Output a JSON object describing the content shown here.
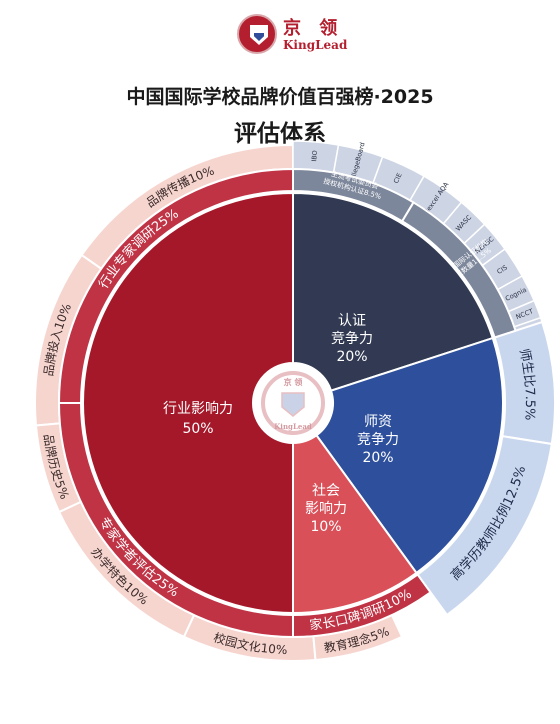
{
  "header": {
    "logo_cn": "京 领",
    "logo_en": "KingLead",
    "title": "中国国际学校品牌价值百强榜·2025",
    "subtitle": "评估体系"
  },
  "center_logo": {
    "cn": "京 领",
    "en": "KingLead"
  },
  "colors": {
    "dark_red": "#a5182a",
    "red": "#bf3345",
    "pink": "#f6d5cf",
    "navy": "#313a52",
    "blue": "#2d4f9c",
    "coral": "#d95059",
    "slate": "#7d879b",
    "light_slate": "#cdd4e4",
    "light_blue": "#c9d7ee"
  },
  "chart_data": {
    "type": "sunburst",
    "inner_ring": [
      {
        "name": "行业影响力",
        "value": 50,
        "label": "50%",
        "color": "#a5182a"
      },
      {
        "name": "认证竞争力",
        "value": 20,
        "label": "20%",
        "color": "#313a52"
      },
      {
        "name": "师资竞争力",
        "value": 20,
        "label": "20%",
        "color": "#2d4f9c"
      },
      {
        "name": "社会影响力",
        "value": 10,
        "label": "10%",
        "color": "#d95059"
      }
    ],
    "inner_labels": [
      {
        "lines": [
          "行业影响力",
          "50%"
        ]
      },
      {
        "lines": [
          "认证",
          "竞争力",
          "20%"
        ]
      },
      {
        "lines": [
          "师资",
          "竞争力",
          "20%"
        ]
      },
      {
        "lines": [
          "社会",
          "影响力",
          "10%"
        ]
      }
    ],
    "middle_ring": [
      {
        "label": "行业专家调研25%",
        "value": 25,
        "parent": "行业影响力",
        "color": "#bf3345"
      },
      {
        "label": "专家学者评估25%",
        "value": 25,
        "parent": "行业影响力",
        "color": "#bf3345"
      },
      {
        "label": "家长口碑调研10%",
        "value": 10,
        "parent": "社会影响力",
        "color": "#bf3345"
      },
      {
        "label": "师生比7.5%",
        "value": 7.5,
        "parent": "师资竞争力",
        "color": "#c9d7ee"
      },
      {
        "label": "高学历教师比例12.5%",
        "value": 12.5,
        "parent": "师资竞争力",
        "color": "#c9d7ee"
      },
      {
        "label": "主流考试委员会授权机构认证8.5%",
        "value": 8.5,
        "parent": "认证竞争力",
        "color": "#7d879b"
      },
      {
        "label": "主流国际认证机构认证数量11.5%",
        "value": 11.5,
        "parent": "认证竞争力",
        "color": "#7d879b"
      }
    ],
    "outer_ring": [
      {
        "label": "品牌传播10%",
        "value": 10,
        "color": "#f6d5cf"
      },
      {
        "label": "品牌投入10%",
        "value": 10,
        "color": "#f6d5cf"
      },
      {
        "label": "品牌历史5%",
        "value": 5,
        "color": "#f6d5cf"
      },
      {
        "label": "办学特色10%",
        "value": 10,
        "color": "#f6d5cf"
      },
      {
        "label": "校园文化10%",
        "value": 10,
        "color": "#f6d5cf"
      },
      {
        "label": "教育理念5%",
        "value": 5,
        "color": "#f6d5cf"
      }
    ],
    "exam_boards": [
      "IBO",
      "CollegeBoard",
      "CIE",
      "Edexcel AQA"
    ],
    "accreditors": [
      "WASC",
      "NEASC",
      "CIS",
      "Cognia",
      "NCCT",
      "EARCOS"
    ]
  }
}
